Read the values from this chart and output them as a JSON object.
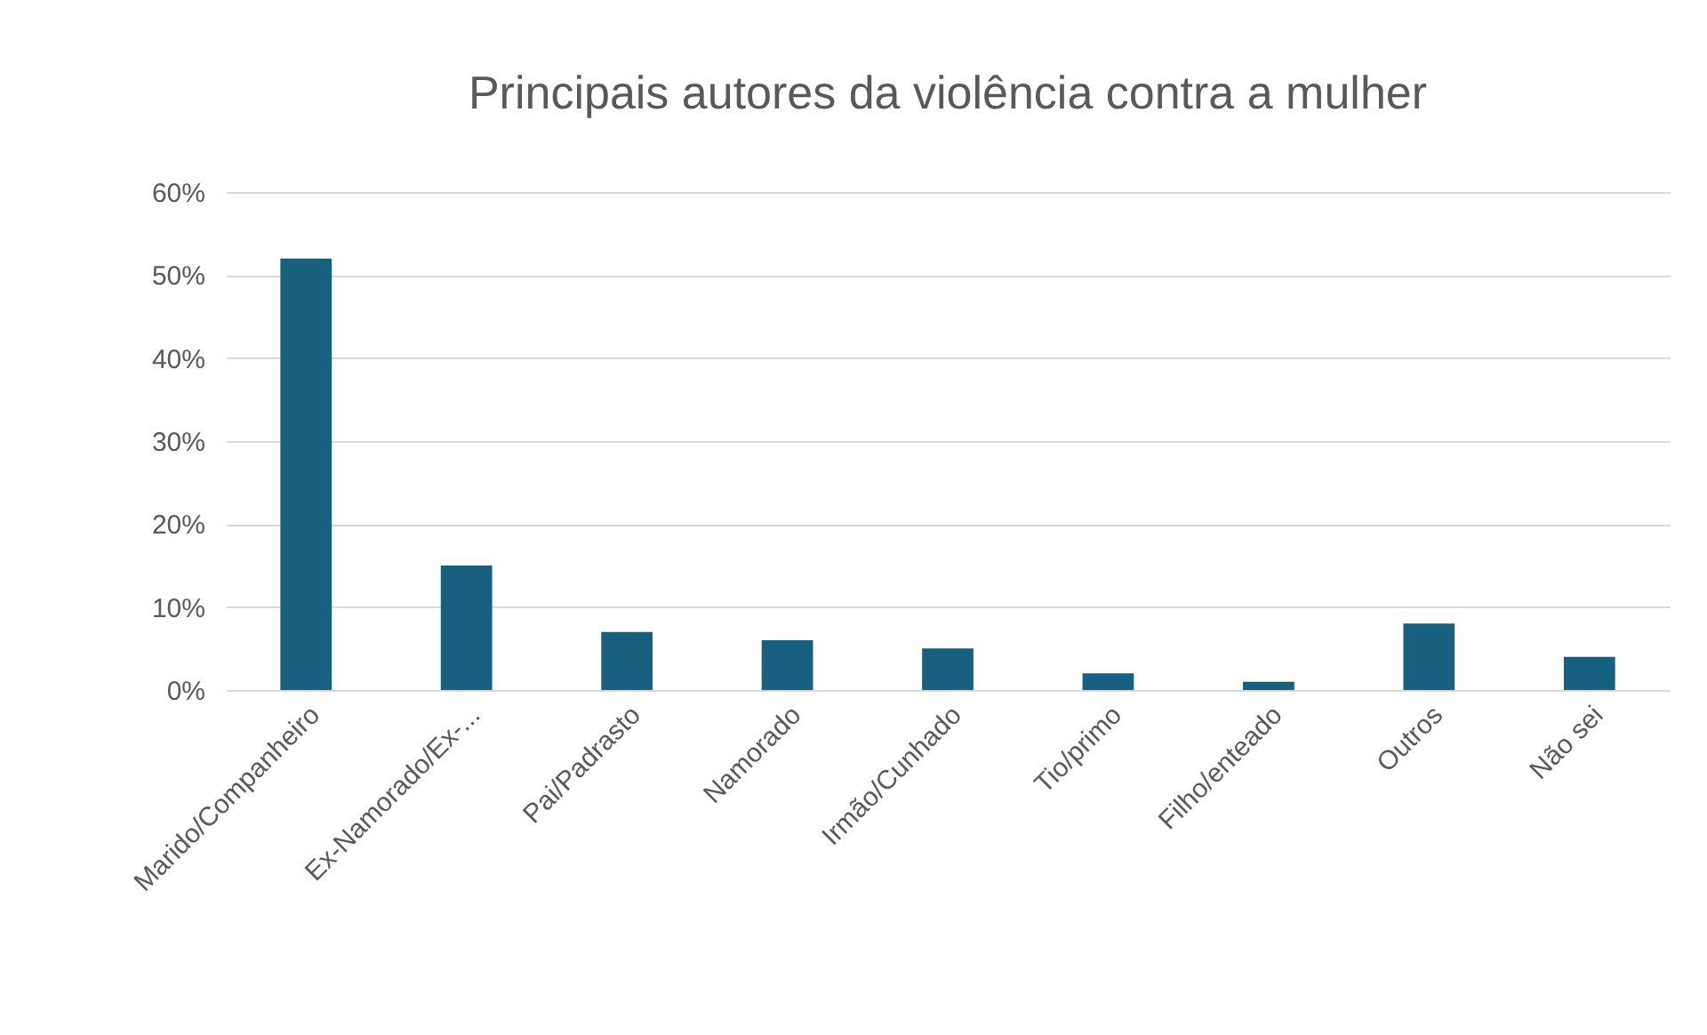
{
  "chart_data": {
    "type": "bar",
    "title": "Principais autores da violência contra a mulher",
    "categories": [
      "Marido/Companheiro",
      "Ex-Namorado/Ex-...",
      "Pai/Padrasto",
      "Namorado",
      "Irmão/Cunhado",
      "Tio/primo",
      "Filho/enteado",
      "Outros",
      "Não sei"
    ],
    "values": [
      52,
      15,
      7,
      6,
      5,
      2,
      1,
      8,
      4
    ],
    "color": "#17607f",
    "ylim": [
      0,
      60
    ],
    "yticks": [
      {
        "value": 0,
        "label": "0%"
      },
      {
        "value": 10,
        "label": "10%"
      },
      {
        "value": 20,
        "label": "20%"
      },
      {
        "value": 30,
        "label": "30%"
      },
      {
        "value": 40,
        "label": "40%"
      },
      {
        "value": 50,
        "label": "50%"
      },
      {
        "value": 60,
        "label": "60%"
      }
    ],
    "grid": "y"
  }
}
